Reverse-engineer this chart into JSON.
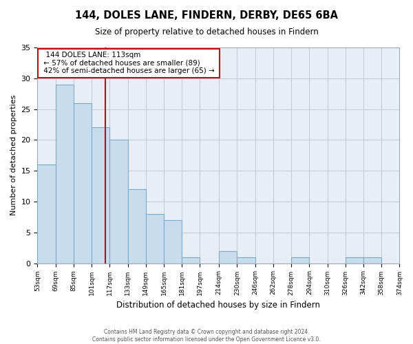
{
  "title": "144, DOLES LANE, FINDERN, DERBY, DE65 6BA",
  "subtitle": "Size of property relative to detached houses in Findern",
  "xlabel": "Distribution of detached houses by size in Findern",
  "ylabel": "Number of detached properties",
  "bar_color": "#c8dcee",
  "bar_edge_color": "#7aaac8",
  "bg_color": "#e8eef5",
  "marker_color": "#cc0000",
  "marker_value": 113,
  "bins": [
    53,
    69,
    85,
    101,
    117,
    133,
    149,
    165,
    181,
    197,
    214,
    230,
    246,
    262,
    278,
    294,
    310,
    326,
    342,
    358,
    374
  ],
  "bin_labels": [
    "53sqm",
    "69sqm",
    "85sqm",
    "101sqm",
    "117sqm",
    "133sqm",
    "149sqm",
    "165sqm",
    "181sqm",
    "197sqm",
    "214sqm",
    "230sqm",
    "246sqm",
    "262sqm",
    "278sqm",
    "294sqm",
    "310sqm",
    "326sqm",
    "342sqm",
    "358sqm",
    "374sqm"
  ],
  "counts": [
    16,
    29,
    26,
    22,
    20,
    12,
    8,
    7,
    1,
    0,
    2,
    1,
    0,
    0,
    1,
    0,
    0,
    1,
    1,
    0
  ],
  "ylim": [
    0,
    35
  ],
  "yticks": [
    0,
    5,
    10,
    15,
    20,
    25,
    30,
    35
  ],
  "annotation_title": "144 DOLES LANE: 113sqm",
  "annotation_line1": "← 57% of detached houses are smaller (89)",
  "annotation_line2": "42% of semi-detached houses are larger (65) →",
  "footer_line1": "Contains HM Land Registry data © Crown copyright and database right 2024.",
  "footer_line2": "Contains public sector information licensed under the Open Government Licence v3.0.",
  "grid_color": "#c0c8d8",
  "spine_color": "#a0a8b8"
}
